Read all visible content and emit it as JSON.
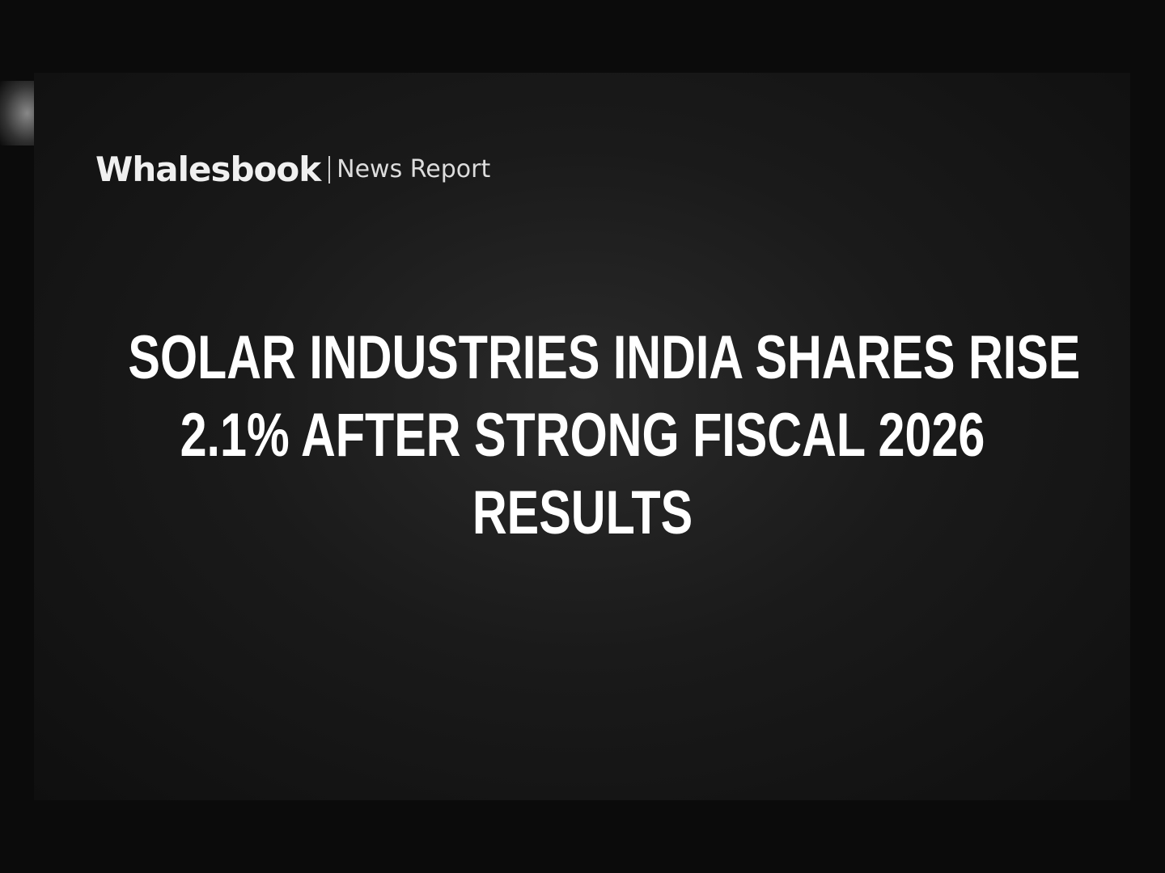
{
  "header": {
    "brand": "Whalesbook",
    "section": "News Report"
  },
  "headline": {
    "lines": [
      "SOLAR INDUSTRIES INDIA SHARES RISE",
      "2.1% AFTER STRONG FISCAL 2026",
      "RESULTS"
    ]
  }
}
